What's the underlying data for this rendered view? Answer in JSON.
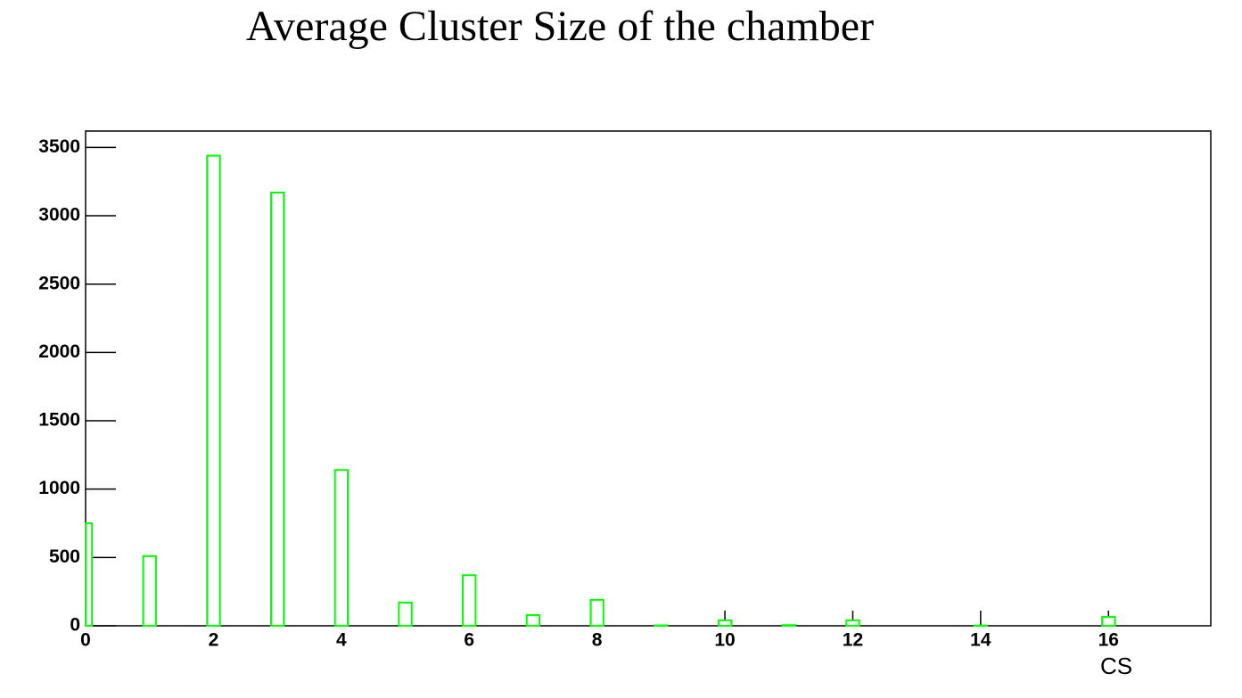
{
  "chart_data": {
    "type": "bar",
    "title": "Average Cluster Size of the chamber",
    "x_label": "CS",
    "x": [
      0,
      1,
      2,
      3,
      4,
      5,
      6,
      7,
      8,
      9,
      10,
      11,
      12,
      13,
      14,
      15,
      16
    ],
    "values": [
      750,
      510,
      3440,
      3170,
      1140,
      170,
      370,
      78,
      190,
      3,
      40,
      5,
      40,
      0,
      2,
      0,
      65
    ],
    "color": "#00ff00",
    "xlim": [
      0,
      17.6
    ],
    "xticks": [
      0,
      2,
      4,
      6,
      8,
      10,
      12,
      14,
      16
    ],
    "ylim": [
      0,
      3620
    ],
    "yticks": [
      0,
      500,
      1000,
      1500,
      2000,
      2500,
      3000,
      3500
    ]
  }
}
